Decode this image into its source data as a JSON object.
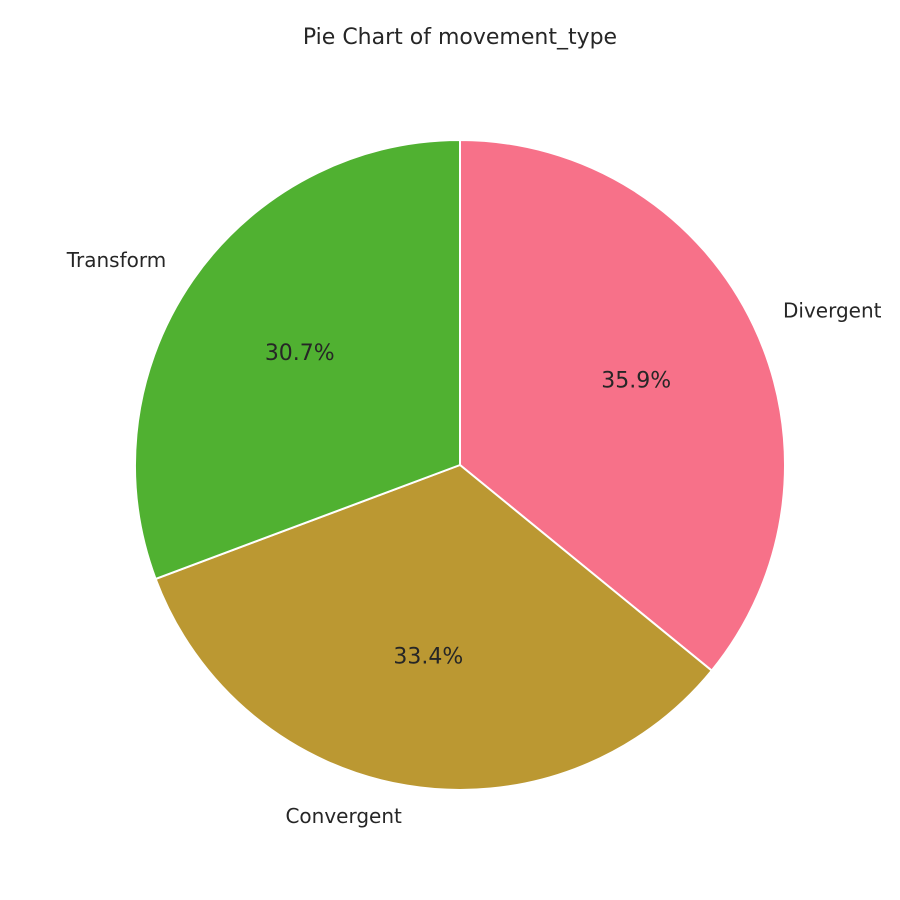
{
  "chart_data": {
    "type": "pie",
    "title": "Pie Chart of movement_type",
    "start_angle_deg": 90,
    "direction": "clockwise",
    "slices": [
      {
        "label": "Divergent",
        "value": 35.9,
        "pct_label": "35.9%",
        "color": "#f77189"
      },
      {
        "label": "Convergent",
        "value": 33.4,
        "pct_label": "33.4%",
        "color": "#bb9832"
      },
      {
        "label": "Transform",
        "value": 30.7,
        "pct_label": "30.7%",
        "color": "#50b131"
      }
    ]
  }
}
